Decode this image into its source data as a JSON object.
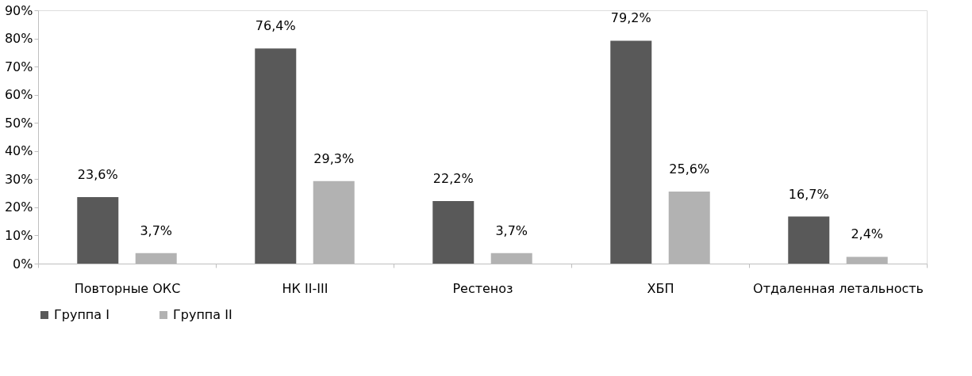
{
  "chart_data": {
    "type": "bar",
    "categories": [
      "Повторные ОКС",
      "НК II-III",
      "Рестеноз",
      "ХБП",
      "Отдаленная летальность"
    ],
    "series": [
      {
        "name": "Группа I",
        "color": "#595959",
        "values": [
          23.6,
          76.4,
          22.2,
          79.2,
          16.7
        ],
        "value_labels": [
          "23,6%",
          "76,4%",
          "22,2%",
          "79,2%",
          "16,7%"
        ]
      },
      {
        "name": "Группа II",
        "color": "#b2b2b2",
        "values": [
          3.7,
          29.3,
          3.7,
          25.6,
          2.4
        ],
        "value_labels": [
          "3,7%",
          "29,3%",
          "3,7%",
          "25,6%",
          "2,4%"
        ]
      }
    ],
    "ylim": [
      0,
      90
    ],
    "yticks": [
      {
        "value": 0,
        "label": "0%"
      },
      {
        "value": 10,
        "label": "10%"
      },
      {
        "value": 20,
        "label": "20%"
      },
      {
        "value": 30,
        "label": "30%"
      },
      {
        "value": 40,
        "label": "40%"
      },
      {
        "value": 50,
        "label": "50%"
      },
      {
        "value": 60,
        "label": "60%"
      },
      {
        "value": 70,
        "label": "70%"
      },
      {
        "value": 80,
        "label": "80%"
      },
      {
        "value": 90,
        "label": "90%"
      }
    ],
    "legend": "bottom",
    "grid": false
  }
}
